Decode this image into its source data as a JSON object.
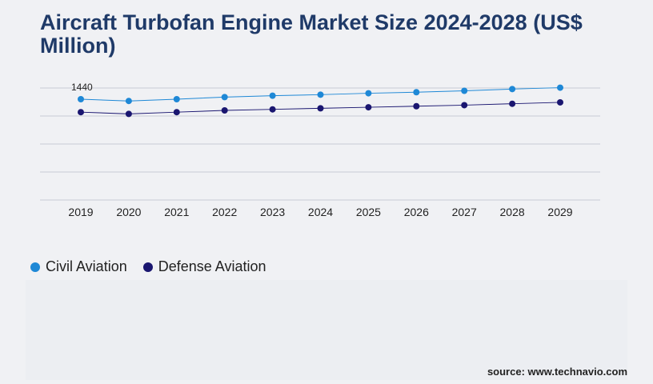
{
  "title": "Aircraft Turbofan Engine Market Size 2024-2028 (US$ Million)",
  "source": "source: www.technavio.com",
  "colors": {
    "civil": "#1e88d6",
    "defense": "#1a1670"
  },
  "chart_data": {
    "type": "line",
    "x": [
      "2019",
      "2020",
      "2021",
      "2022",
      "2023",
      "2024",
      "2025",
      "2026",
      "2027",
      "2028",
      "2029"
    ],
    "series": [
      {
        "name": "Civil Aviation",
        "values": [
          1440,
          1415,
          1440,
          1470,
          1490,
          1505,
          1525,
          1540,
          1560,
          1585,
          1605
        ]
      },
      {
        "name": "Defense Aviation",
        "values": [
          1255,
          1230,
          1255,
          1280,
          1295,
          1310,
          1325,
          1340,
          1355,
          1375,
          1395
        ]
      }
    ],
    "data_labels": [
      {
        "series": 0,
        "index": 0,
        "text": "1440"
      }
    ],
    "ylim": [
      0,
      1600
    ],
    "grid": true,
    "legend": "bottom-left"
  }
}
